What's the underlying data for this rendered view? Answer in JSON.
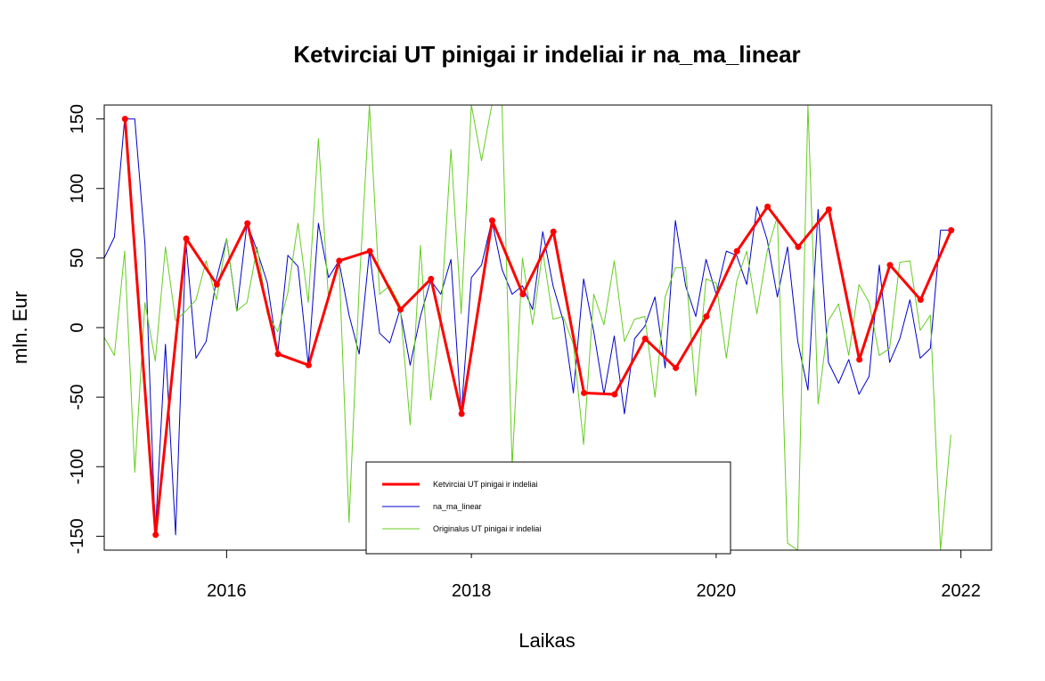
{
  "chart_data": {
    "type": "line",
    "title": "Ketvirciai UT pinigai ir indeliai ir na_ma_linear",
    "xlabel": "Laikas",
    "ylabel": "mln. Eur",
    "xlim": [
      2015.0,
      2022.25
    ],
    "ylim": [
      -160,
      160
    ],
    "x_ticks": [
      2016,
      2018,
      2020,
      2022
    ],
    "x_tick_labels": [
      "2016",
      "2018",
      "2020",
      "2022"
    ],
    "y_ticks": [
      -150,
      -100,
      -50,
      0,
      50,
      100,
      150
    ],
    "y_tick_labels": [
      "-150",
      "-100",
      "-50",
      "0",
      "50",
      "100",
      "150"
    ],
    "grid": false,
    "legend_position": "bottom-center",
    "legend": [
      {
        "label": "Ketvirciai UT pinigai ir indeliai",
        "color": "#ff0000"
      },
      {
        "label": "na_ma_linear",
        "color": "#0000cc"
      },
      {
        "label": "Originalus UT pinigai ir indeliai",
        "color": "#66cc22"
      }
    ],
    "series": [
      {
        "name": "Ketvirciai UT pinigai ir indeliai",
        "color": "#ff0000",
        "markers": true,
        "x": [
          2015.17,
          2015.42,
          2015.67,
          2015.92,
          2016.17,
          2016.42,
          2016.67,
          2016.92,
          2017.17,
          2017.42,
          2017.67,
          2017.92,
          2018.17,
          2018.42,
          2018.67,
          2018.92,
          2019.17,
          2019.42,
          2019.67,
          2019.92,
          2020.17,
          2020.42,
          2020.67,
          2020.92,
          2021.17,
          2021.42,
          2021.67,
          2021.92
        ],
        "y": [
          150,
          -149,
          64,
          31,
          75,
          -19,
          -27,
          48,
          55,
          13,
          35,
          -62,
          77,
          24,
          69,
          -47,
          -48,
          -8,
          -29,
          8,
          55,
          87,
          58,
          85,
          -23,
          45,
          20,
          70
        ]
      },
      {
        "name": "na_ma_linear",
        "color": "#0000cc",
        "markers": false,
        "x": [
          2015.0,
          2015.083,
          2015.167,
          2015.25,
          2015.333,
          2015.417,
          2015.5,
          2015.583,
          2015.667,
          2015.75,
          2015.833,
          2015.917,
          2016.0,
          2016.083,
          2016.167,
          2016.25,
          2016.333,
          2016.417,
          2016.5,
          2016.583,
          2016.667,
          2016.75,
          2016.833,
          2016.917,
          2017.0,
          2017.083,
          2017.167,
          2017.25,
          2017.333,
          2017.417,
          2017.5,
          2017.583,
          2017.667,
          2017.75,
          2017.833,
          2017.917,
          2018.0,
          2018.083,
          2018.167,
          2018.25,
          2018.333,
          2018.417,
          2018.5,
          2018.583,
          2018.667,
          2018.75,
          2018.833,
          2018.917,
          2019.0,
          2019.083,
          2019.167,
          2019.25,
          2019.333,
          2019.417,
          2019.5,
          2019.583,
          2019.667,
          2019.75,
          2019.833,
          2019.917,
          2020.0,
          2020.083,
          2020.167,
          2020.25,
          2020.333,
          2020.417,
          2020.5,
          2020.583,
          2020.667,
          2020.75,
          2020.833,
          2020.917,
          2021.0,
          2021.083,
          2021.167,
          2021.25,
          2021.333,
          2021.417,
          2021.5,
          2021.583,
          2021.667,
          2021.75,
          2021.833,
          2021.917
        ],
        "y": [
          50,
          65,
          150,
          150,
          60,
          -148,
          -12,
          -149,
          62,
          -22,
          -10,
          35,
          64,
          12,
          75,
          55,
          32,
          -19,
          52,
          44,
          -27,
          75,
          36,
          48,
          9,
          -19,
          55,
          -4,
          -11,
          13,
          -27,
          8,
          34,
          24,
          49,
          -62,
          36,
          45,
          77,
          42,
          24,
          30,
          13,
          69,
          30,
          5,
          -47,
          35,
          -3,
          -48,
          -6,
          -62,
          -8,
          1,
          22,
          -29,
          77,
          30,
          8,
          49,
          24,
          55,
          52,
          31,
          87,
          63,
          22,
          58,
          -10,
          -45,
          85,
          -25,
          -40,
          -23,
          -48,
          -35,
          45,
          -25,
          -8,
          20,
          -22,
          -15,
          70,
          70
        ]
      },
      {
        "name": "Originalus UT pinigai ir indeliai",
        "color": "#66cc22",
        "markers": false,
        "x": [
          2015.0,
          2015.083,
          2015.167,
          2015.25,
          2015.333,
          2015.417,
          2015.5,
          2015.583,
          2015.667,
          2015.75,
          2015.833,
          2015.917,
          2016.0,
          2016.083,
          2016.167,
          2016.25,
          2016.333,
          2016.417,
          2016.5,
          2016.583,
          2016.667,
          2016.75,
          2016.833,
          2016.917,
          2017.0,
          2017.083,
          2017.167,
          2017.25,
          2017.333,
          2017.417,
          2017.5,
          2017.583,
          2017.667,
          2017.75,
          2017.833,
          2017.917,
          2018.0,
          2018.083,
          2018.167,
          2018.25,
          2018.333,
          2018.417,
          2018.5,
          2018.583,
          2018.667,
          2018.75,
          2018.833,
          2018.917,
          2019.0,
          2019.083,
          2019.167,
          2019.25,
          2019.333,
          2019.417,
          2019.5,
          2019.583,
          2019.667,
          2019.75,
          2019.833,
          2019.917,
          2020.0,
          2020.083,
          2020.167,
          2020.25,
          2020.333,
          2020.417,
          2020.5,
          2020.583,
          2020.667,
          2020.75,
          2020.833,
          2020.917,
          2021.0,
          2021.083,
          2021.167,
          2021.25,
          2021.333,
          2021.417,
          2021.5,
          2021.583,
          2021.667,
          2021.75,
          2021.833,
          2021.917
        ],
        "y": [
          -7,
          -20,
          55,
          -104,
          18,
          -24,
          58,
          5,
          12,
          20,
          48,
          20,
          64,
          12,
          18,
          58,
          10,
          -3,
          25,
          75,
          18,
          136,
          20,
          50,
          -140,
          30,
          160,
          24,
          30,
          16,
          -70,
          59,
          -52,
          8,
          128,
          10,
          160,
          120,
          160,
          160,
          -100,
          50,
          2,
          55,
          6,
          8,
          -12,
          -84,
          24,
          2,
          48,
          -10,
          6,
          8,
          -50,
          22,
          43,
          43,
          -49,
          35,
          32,
          -22,
          33,
          55,
          10,
          55,
          80,
          -155,
          -160,
          160,
          -55,
          5,
          17,
          -20,
          31,
          18,
          -20,
          -15,
          47,
          48,
          -2,
          9,
          -160,
          -77
        ]
      }
    ]
  }
}
